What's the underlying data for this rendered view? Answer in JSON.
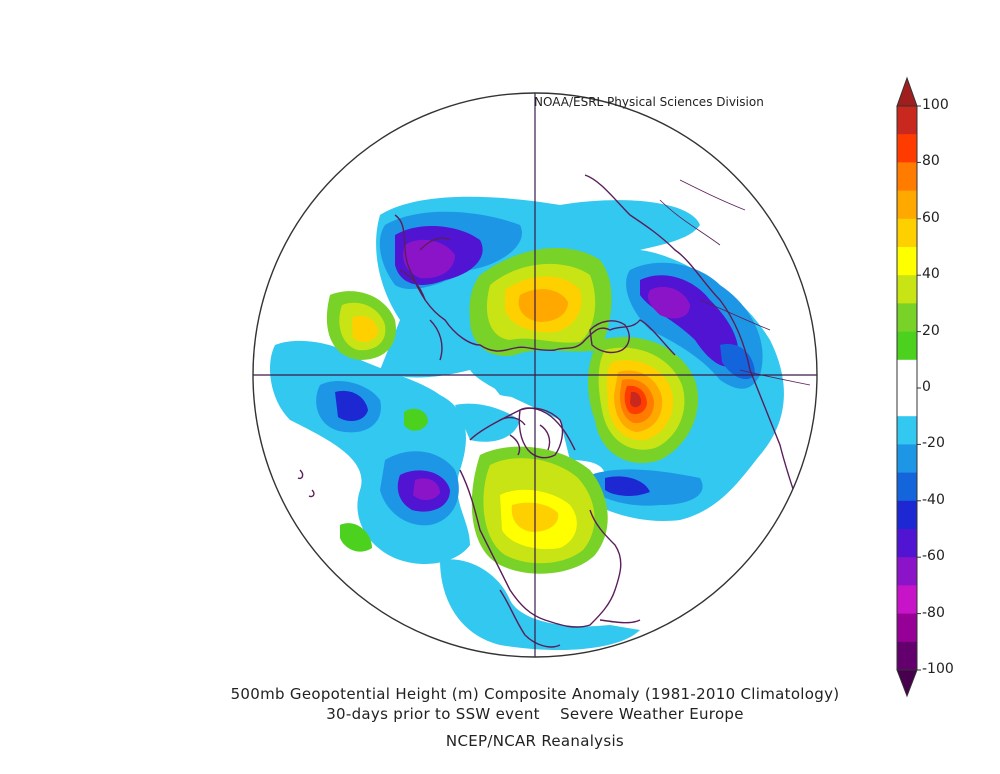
{
  "credit": "NOAA/ESRL Physical Sciences Division",
  "caption": {
    "line1": "500mb Geopotential Height (m) Composite Anomaly (1981-2010 Climatology)",
    "line2": "30-days prior to SSW event    Severe Weather Europe",
    "line3": "NCEP/NCAR Reanalysis"
  },
  "colorbar": {
    "labels": [
      "100",
      "80",
      "60",
      "40",
      "20",
      "0",
      "-20",
      "-40",
      "-60",
      "-80",
      "-100"
    ],
    "colors": [
      "#c8281e",
      "#ff3c00",
      "#ff7c00",
      "#ffa800",
      "#ffd000",
      "#ffff00",
      "#c8e414",
      "#78d228",
      "#4cd21e",
      "#ffffff",
      "#ffffff",
      "#32c8f0",
      "#1e96e6",
      "#1464dc",
      "#1e28d2",
      "#5014d2",
      "#8c14c8",
      "#c814c8",
      "#960096",
      "#64006e"
    ]
  },
  "map": {
    "projection": "north-polar-stereographic",
    "anomaly_blobs": [
      {
        "region": "western-siberia-low",
        "level": -70
      },
      {
        "region": "north-pacific-low",
        "level": -70
      },
      {
        "region": "scandinavia-arctic-high",
        "level": 40
      },
      {
        "region": "east-siberia-high",
        "level": 90
      },
      {
        "region": "north-america-high",
        "level": 50
      },
      {
        "region": "north-atlantic-low",
        "level": -50
      },
      {
        "region": "central-pacific-low",
        "level": -40
      }
    ]
  }
}
